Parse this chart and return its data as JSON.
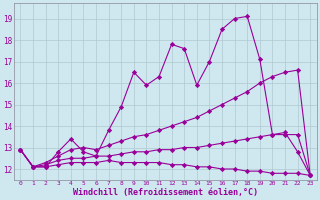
{
  "xlabel": "Windchill (Refroidissement éolien,°C)",
  "background_color": "#cfe8ef",
  "line_color": "#990099",
  "grid_color": "#b0c8d0",
  "xlim": [
    -0.5,
    23.5
  ],
  "ylim": [
    11.5,
    19.7
  ],
  "xticks": [
    0,
    1,
    2,
    3,
    4,
    5,
    6,
    7,
    8,
    9,
    10,
    11,
    12,
    13,
    14,
    15,
    16,
    17,
    18,
    19,
    20,
    21,
    22,
    23
  ],
  "yticks": [
    12,
    13,
    14,
    15,
    16,
    17,
    18,
    19
  ],
  "series": {
    "line1_x": [
      0,
      1,
      2,
      3,
      4,
      5,
      6,
      7,
      8,
      9,
      10,
      11,
      12,
      13,
      14,
      15,
      16,
      17,
      18,
      19,
      20,
      21,
      22,
      23
    ],
    "line1_y": [
      12.9,
      12.1,
      12.1,
      12.8,
      13.4,
      12.8,
      12.6,
      13.8,
      14.9,
      16.5,
      15.9,
      16.3,
      17.8,
      17.6,
      15.9,
      17.0,
      18.5,
      19.0,
      19.1,
      17.1,
      13.6,
      13.7,
      12.8,
      11.7
    ],
    "line2_x": [
      0,
      1,
      2,
      3,
      4,
      5,
      6,
      7,
      8,
      9,
      10,
      11,
      12,
      13,
      14,
      15,
      16,
      17,
      18,
      19,
      20,
      21,
      22,
      23
    ],
    "line2_y": [
      12.9,
      12.1,
      12.3,
      12.6,
      12.9,
      13.0,
      12.9,
      13.1,
      13.3,
      13.5,
      13.6,
      13.8,
      14.0,
      14.2,
      14.4,
      14.7,
      15.0,
      15.3,
      15.6,
      16.0,
      16.3,
      16.5,
      16.6,
      11.7
    ],
    "line3_x": [
      0,
      1,
      2,
      3,
      4,
      5,
      6,
      7,
      8,
      9,
      10,
      11,
      12,
      13,
      14,
      15,
      16,
      17,
      18,
      19,
      20,
      21,
      22,
      23
    ],
    "line3_y": [
      12.9,
      12.1,
      12.2,
      12.4,
      12.5,
      12.5,
      12.6,
      12.6,
      12.7,
      12.8,
      12.8,
      12.9,
      12.9,
      13.0,
      13.0,
      13.1,
      13.2,
      13.3,
      13.4,
      13.5,
      13.6,
      13.6,
      13.6,
      11.7
    ],
    "line4_x": [
      0,
      1,
      2,
      3,
      4,
      5,
      6,
      7,
      8,
      9,
      10,
      11,
      12,
      13,
      14,
      15,
      16,
      17,
      18,
      19,
      20,
      21,
      22,
      23
    ],
    "line4_y": [
      12.9,
      12.1,
      12.1,
      12.2,
      12.3,
      12.3,
      12.3,
      12.4,
      12.3,
      12.3,
      12.3,
      12.3,
      12.2,
      12.2,
      12.1,
      12.1,
      12.0,
      12.0,
      11.9,
      11.9,
      11.8,
      11.8,
      11.8,
      11.7
    ]
  }
}
